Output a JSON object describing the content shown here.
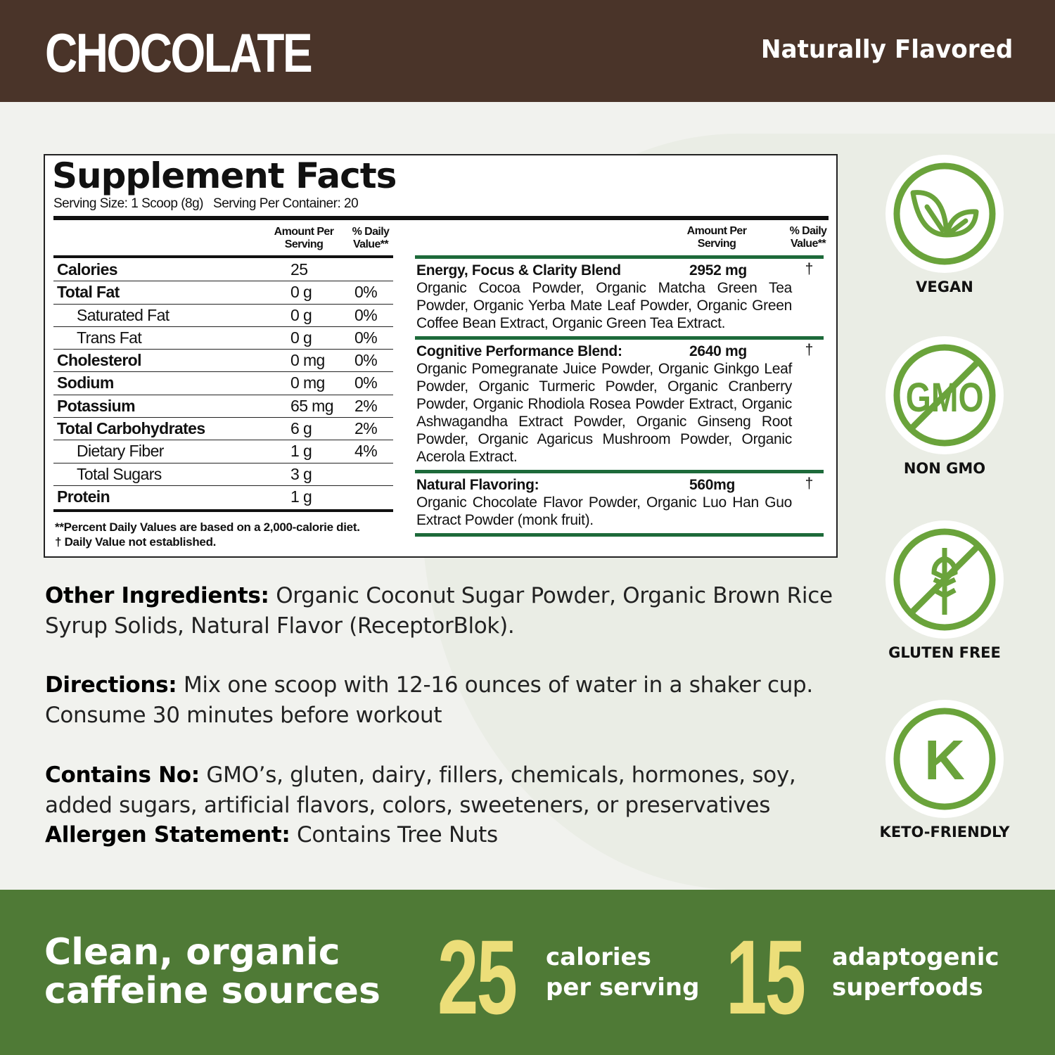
{
  "header": {
    "title": "CHOCOLATE",
    "subtitle": "Naturally Flavored"
  },
  "facts": {
    "title": "Supplement Facts",
    "serving_size": "Serving Size: 1 Scoop (8g)",
    "servings_per_container": "Serving Per Container: 20",
    "col_amount": "Amount Per Serving",
    "col_dv": "% Daily Value**",
    "rows": [
      {
        "name": "Calories",
        "amount": "25",
        "dv": "",
        "bold": true
      },
      {
        "name": "Total Fat",
        "amount": "0 g",
        "dv": "0%",
        "bold": true
      },
      {
        "name": "Saturated Fat",
        "amount": "0 g",
        "dv": "0%",
        "indent": true
      },
      {
        "name": "Trans Fat",
        "amount": "0 g",
        "dv": "0%",
        "indent": true
      },
      {
        "name": "Cholesterol",
        "amount": "0 mg",
        "dv": "0%",
        "bold": true
      },
      {
        "name": "Sodium",
        "amount": "0 mg",
        "dv": "0%",
        "bold": true
      },
      {
        "name": "Potassium",
        "amount": "65 mg",
        "dv": "2%",
        "bold": true
      },
      {
        "name": "Total Carbohydrates",
        "amount": "6 g",
        "dv": "2%",
        "bold": true
      },
      {
        "name": "Dietary Fiber",
        "amount": "1 g",
        "dv": "4%",
        "indent": true
      },
      {
        "name": "Total Sugars",
        "amount": "3 g",
        "dv": "",
        "indent": true
      },
      {
        "name": "Protein",
        "amount": "1 g",
        "dv": "",
        "bold": true
      }
    ],
    "footnote1": "**Percent Daily Values are based on a 2,000-calorie diet.",
    "footnote2": "† Daily Value not established.",
    "blends": [
      {
        "name": "Energy, Focus & Clarity Blend",
        "amount": "2952 mg",
        "dv": "†",
        "ingredients": "Organic Cocoa Powder, Organic Matcha Green Tea Powder, Organic Yerba Mate Leaf Powder, Organic Green Coffee Bean Extract, Organic Green Tea Extract."
      },
      {
        "name": "Cognitive Performance Blend:",
        "amount": "2640 mg",
        "dv": "†",
        "ingredients": "Organic Pomegranate Juice Powder, Organic Ginkgo Leaf Powder, Organic Turmeric Powder, Organic Cranberry Powder, Organic Rhodiola Rosea Powder Extract, Organic Ashwagandha Extract Powder, Organic Ginseng Root Powder, Organic Agaricus Mushroom Powder, Organic Acerola Extract."
      },
      {
        "name": "Natural Flavoring:",
        "amount": "560mg",
        "dv": "†",
        "ingredients": "Organic Chocolate Flavor Powder, Organic Luo Han Guo Extract Powder (monk fruit)."
      }
    ]
  },
  "info": {
    "other_label": "Other Ingredients:",
    "other": " Organic Coconut Sugar Powder, Organic Brown Rice Syrup Solids, Natural Flavor (ReceptorBlok).",
    "directions_label": "Directions:",
    "directions": " Mix one scoop with 12-16 ounces of water in a shaker cup. Consume 30 minutes before workout",
    "contains_label": "Contains No:",
    "contains": " GMO’s, gluten, dairy, fillers, chemicals, hormones, soy, added sugars, artificial flavors, colors, sweeteners, or preservatives",
    "allergen_label": "Allergen Statement:",
    "allergen": " Contains Tree Nuts"
  },
  "badges": [
    {
      "label": "VEGAN",
      "icon": "leaf-icon"
    },
    {
      "label": "NON GMO",
      "icon": "no-gmo-icon",
      "text": "GMO"
    },
    {
      "label": "GLUTEN FREE",
      "icon": "no-wheat-icon"
    },
    {
      "label": "KETO-FRIENDLY",
      "icon": "keto-icon",
      "text": "K"
    }
  ],
  "footer": {
    "headline1": "Clean, organic",
    "headline2": "caffeine sources",
    "stat1": "25",
    "stat1_l1": "calories",
    "stat1_l2": "per serving",
    "stat2": "15",
    "stat2_l1": "adaptogenic",
    "stat2_l2": "superfoods"
  },
  "colors": {
    "brown": "#4a3429",
    "green_band": "#4f7a36",
    "icon_green": "#6aa33b",
    "yellow": "#ecde79",
    "rule_green": "#1d6a3a"
  }
}
